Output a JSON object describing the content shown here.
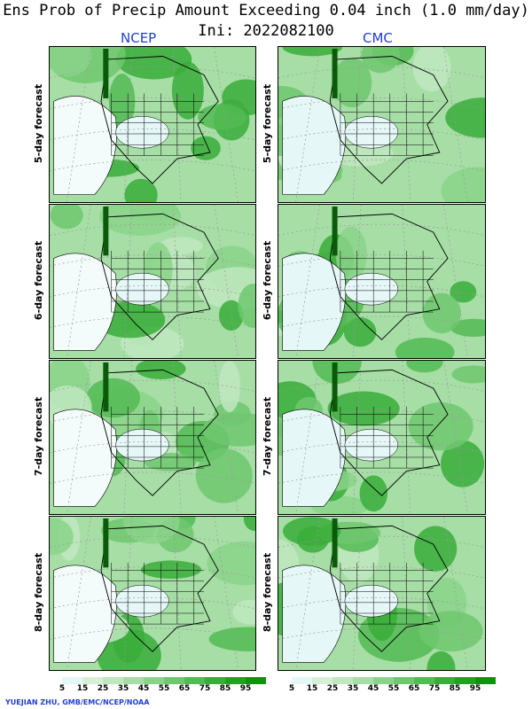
{
  "title": "Ens Prob of Precip Amount Exceeding 0.04 inch (1.0 mm/day)",
  "init_label": "Ini: 2022082100",
  "models": [
    "NCEP",
    "CMC"
  ],
  "rows": [
    "5-day forecast",
    "6-day forecast",
    "7-day forecast",
    "8-day forecast"
  ],
  "colorbar": {
    "labels": [
      "5",
      "15",
      "25",
      "35",
      "45",
      "55",
      "65",
      "75",
      "85",
      "95"
    ],
    "colors": [
      "#ffffff",
      "#e6f7f7",
      "#d6f0d6",
      "#bfe8bf",
      "#a6dea6",
      "#8ad48a",
      "#6ec86e",
      "#52bb52",
      "#38ad38",
      "#22a022",
      "#0f930f"
    ]
  },
  "credit": "YUEJIAN ZHU, GMB/EMC/NCEP/NOAA"
}
